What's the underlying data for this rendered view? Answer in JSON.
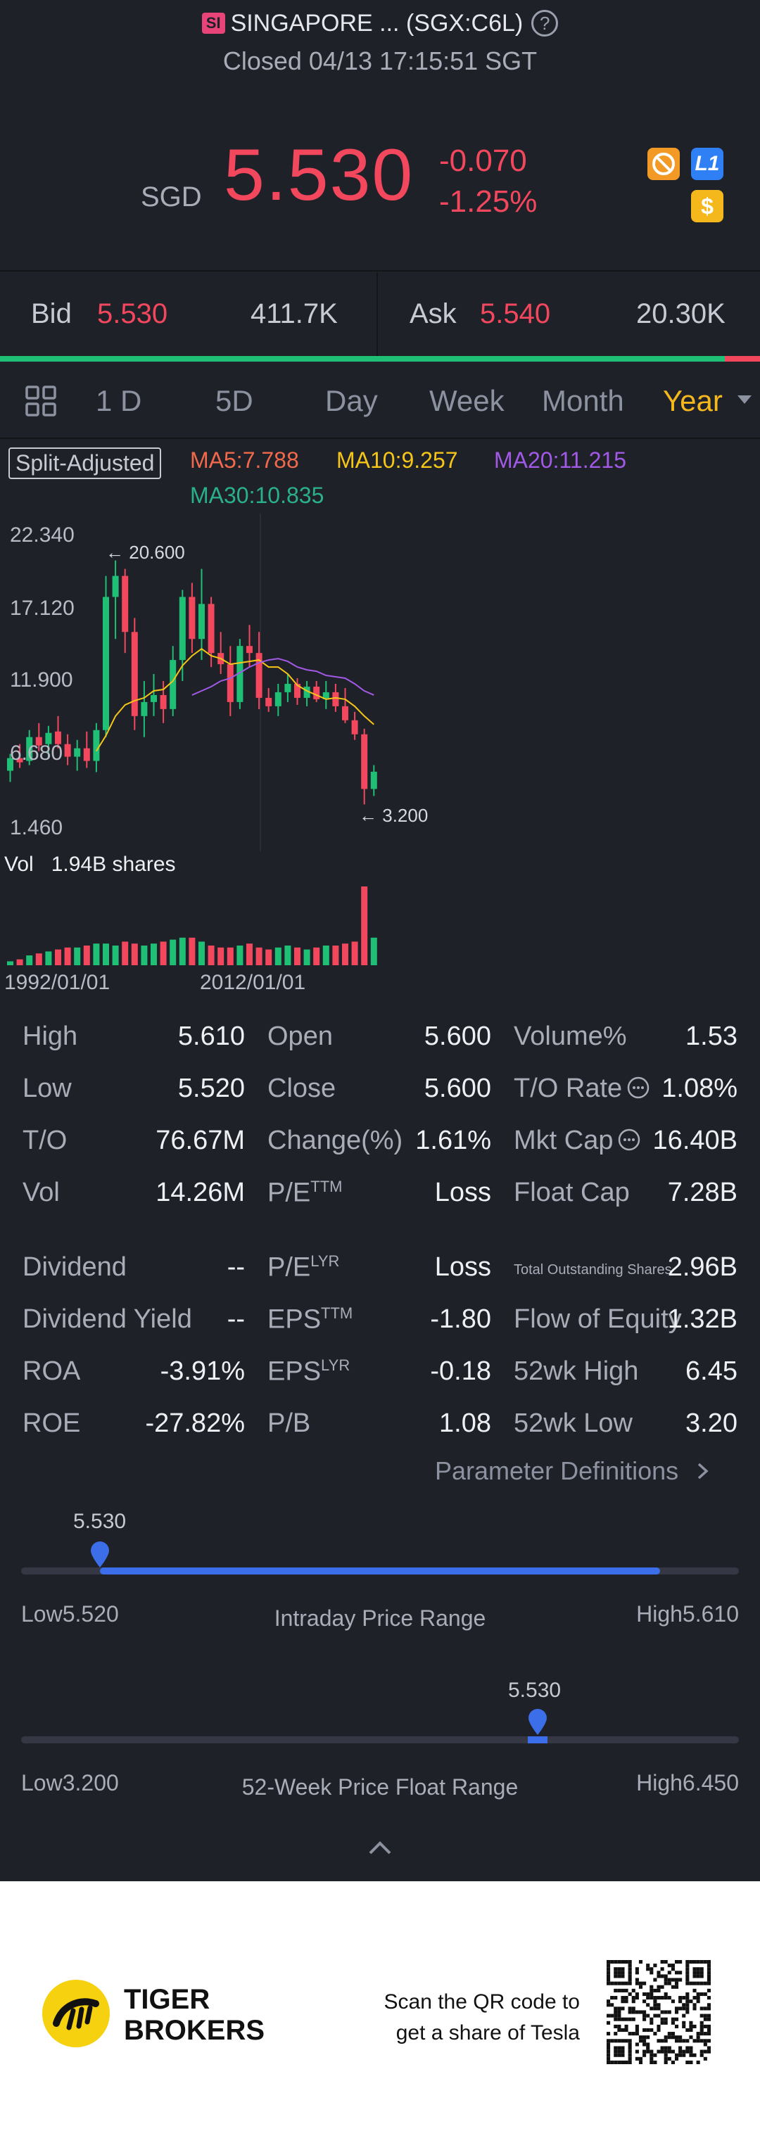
{
  "header": {
    "badge": "SI",
    "title": "SINGAPORE ... (SGX:C6L)",
    "status": "Closed 04/13 17:15:51 SGT"
  },
  "quote": {
    "currency": "SGD",
    "price": "5.530",
    "change": "-0.070",
    "change_pct": "-1.25%",
    "icon_l1": "L1",
    "icon_dollar": "$"
  },
  "bidask": {
    "bid_label": "Bid",
    "bid_price": "5.530",
    "bid_size": "411.7K",
    "ask_label": "Ask",
    "ask_price": "5.540",
    "ask_size": "20.30K"
  },
  "tabs": [
    "1 D",
    "5D",
    "Day",
    "Week",
    "Month",
    "Year"
  ],
  "tab_active": "Year",
  "chart": {
    "split_label": "Split-Adjusted",
    "ma5": "MA5:7.788",
    "ma10": "MA10:9.257",
    "ma20": "MA20:11.215",
    "ma30": "MA30:10.835",
    "y_ticks": [
      "22.340",
      "17.120",
      "11.900",
      "6.680",
      "1.460"
    ],
    "max_label": "20.600",
    "min_label": "3.200",
    "vol_label": "Vol",
    "vol_value": "1.94B shares",
    "x_ticks": [
      "1992/01/01",
      "2012/01/01"
    ],
    "colors": {
      "up": "#1fbf75",
      "down": "#f2475d",
      "ma5": "#f0694a",
      "ma10": "#f5c518",
      "ma20": "#a259e6",
      "ma30": "#2ab08a"
    }
  },
  "chart_data": {
    "type": "candlestick",
    "y_range": [
      1.46,
      22.34
    ],
    "candles": [
      {
        "o": 5.6,
        "h": 6.8,
        "l": 4.8,
        "c": 6.5
      },
      {
        "o": 6.5,
        "h": 7.5,
        "l": 5.8,
        "c": 6.2
      },
      {
        "o": 6.3,
        "h": 8.5,
        "l": 6.0,
        "c": 8.0
      },
      {
        "o": 8.0,
        "h": 9.0,
        "l": 7.0,
        "c": 7.4
      },
      {
        "o": 7.5,
        "h": 8.8,
        "l": 6.5,
        "c": 8.3
      },
      {
        "o": 8.4,
        "h": 9.5,
        "l": 7.2,
        "c": 7.5
      },
      {
        "o": 7.5,
        "h": 8.2,
        "l": 6.0,
        "c": 6.6
      },
      {
        "o": 6.6,
        "h": 7.8,
        "l": 5.6,
        "c": 7.2
      },
      {
        "o": 7.2,
        "h": 8.4,
        "l": 5.8,
        "c": 6.3
      },
      {
        "o": 6.3,
        "h": 9.0,
        "l": 5.5,
        "c": 8.5
      },
      {
        "o": 8.5,
        "h": 19.5,
        "l": 8.0,
        "c": 18.0
      },
      {
        "o": 18.0,
        "h": 20.6,
        "l": 15.0,
        "c": 19.5
      },
      {
        "o": 19.5,
        "h": 20.0,
        "l": 14.0,
        "c": 15.5
      },
      {
        "o": 15.5,
        "h": 16.5,
        "l": 8.5,
        "c": 9.5
      },
      {
        "o": 9.5,
        "h": 12.0,
        "l": 8.0,
        "c": 10.5
      },
      {
        "o": 10.5,
        "h": 12.5,
        "l": 9.5,
        "c": 11.0
      },
      {
        "o": 11.0,
        "h": 12.0,
        "l": 9.0,
        "c": 10.0
      },
      {
        "o": 10.0,
        "h": 14.5,
        "l": 9.5,
        "c": 13.5
      },
      {
        "o": 13.5,
        "h": 18.5,
        "l": 12.0,
        "c": 18.0
      },
      {
        "o": 18.0,
        "h": 19.0,
        "l": 14.0,
        "c": 15.0
      },
      {
        "o": 15.0,
        "h": 20.0,
        "l": 13.5,
        "c": 17.5
      },
      {
        "o": 17.5,
        "h": 18.0,
        "l": 13.0,
        "c": 14.0
      },
      {
        "o": 14.0,
        "h": 15.5,
        "l": 12.5,
        "c": 13.2
      },
      {
        "o": 13.2,
        "h": 14.5,
        "l": 9.5,
        "c": 10.5
      },
      {
        "o": 10.5,
        "h": 15.0,
        "l": 10.0,
        "c": 14.5
      },
      {
        "o": 14.5,
        "h": 16.0,
        "l": 13.0,
        "c": 14.0
      },
      {
        "o": 14.0,
        "h": 15.5,
        "l": 10.0,
        "c": 10.8
      },
      {
        "o": 10.8,
        "h": 11.5,
        "l": 9.8,
        "c": 10.2
      },
      {
        "o": 10.2,
        "h": 11.8,
        "l": 9.5,
        "c": 11.2
      },
      {
        "o": 11.2,
        "h": 12.5,
        "l": 10.5,
        "c": 11.8
      },
      {
        "o": 11.8,
        "h": 12.2,
        "l": 10.3,
        "c": 10.8
      },
      {
        "o": 10.8,
        "h": 12.0,
        "l": 10.2,
        "c": 11.6
      },
      {
        "o": 11.6,
        "h": 12.0,
        "l": 10.5,
        "c": 10.7
      },
      {
        "o": 10.7,
        "h": 12.0,
        "l": 10.0,
        "c": 11.2
      },
      {
        "o": 11.2,
        "h": 11.8,
        "l": 9.8,
        "c": 10.2
      },
      {
        "o": 10.2,
        "h": 11.5,
        "l": 9.0,
        "c": 9.2
      },
      {
        "o": 9.2,
        "h": 9.8,
        "l": 7.8,
        "c": 8.2
      },
      {
        "o": 8.2,
        "h": 8.6,
        "l": 3.2,
        "c": 4.3
      },
      {
        "o": 4.3,
        "h": 6.0,
        "l": 3.8,
        "c": 5.53
      }
    ],
    "volume": [
      0.1,
      0.15,
      0.25,
      0.3,
      0.35,
      0.4,
      0.45,
      0.45,
      0.5,
      0.55,
      0.55,
      0.5,
      0.6,
      0.55,
      0.5,
      0.55,
      0.6,
      0.65,
      0.7,
      0.7,
      0.6,
      0.5,
      0.45,
      0.45,
      0.5,
      0.55,
      0.45,
      0.4,
      0.45,
      0.5,
      0.45,
      0.4,
      0.45,
      0.5,
      0.5,
      0.55,
      0.6,
      2.0,
      0.7
    ],
    "ma_lines": {
      "ma10": [
        null,
        null,
        null,
        null,
        null,
        null,
        null,
        null,
        null,
        7.0,
        8.1,
        9.5,
        10.3,
        10.6,
        10.8,
        11.3,
        11.4,
        12.0,
        13.1,
        13.8,
        14.3,
        13.8,
        13.6,
        13.2,
        13.3,
        13.4,
        13.5,
        13.0,
        13.0,
        12.5,
        11.7,
        11.3,
        11.0,
        10.7,
        10.8,
        10.7,
        10.2,
        9.5,
        8.9
      ],
      "ma20": [
        null,
        null,
        null,
        null,
        null,
        null,
        null,
        null,
        null,
        null,
        null,
        null,
        null,
        null,
        null,
        null,
        null,
        null,
        null,
        11.0,
        11.3,
        11.6,
        12.0,
        12.2,
        12.6,
        13.0,
        13.3,
        13.5,
        13.6,
        13.4,
        13.0,
        12.8,
        12.7,
        12.4,
        12.3,
        12.2,
        11.8,
        11.3,
        11.0
      ]
    },
    "x_ticks": [
      "1992/01/01",
      "2012/01/01"
    ]
  },
  "stats": {
    "col1": [
      {
        "label": "High",
        "value": "5.610"
      },
      {
        "label": "Low",
        "value": "5.520"
      },
      {
        "label": "T/O",
        "value": "76.67M"
      },
      {
        "label": "Vol",
        "value": "14.26M"
      },
      {
        "label": "Dividend",
        "value": "--"
      },
      {
        "label": "Dividend Yield",
        "value": "--"
      },
      {
        "label": "ROA",
        "value": "-3.91%"
      },
      {
        "label": "ROE",
        "value": "-27.82%"
      }
    ],
    "col2": [
      {
        "label": "Open",
        "sup": "",
        "value": "5.600"
      },
      {
        "label": "Close",
        "sup": "",
        "value": "5.600"
      },
      {
        "label": "Change(%)",
        "sup": "",
        "value": "1.61%"
      },
      {
        "label": "P/E",
        "sup": "TTM",
        "value": "Loss"
      },
      {
        "label": "P/E",
        "sup": "LYR",
        "value": "Loss"
      },
      {
        "label": "EPS",
        "sup": "TTM",
        "value": "-1.80"
      },
      {
        "label": "EPS",
        "sup": "LYR",
        "value": "-0.18"
      },
      {
        "label": "P/B",
        "sup": "",
        "value": "1.08"
      }
    ],
    "col3": [
      {
        "label": "Volume%",
        "value": "1.53"
      },
      {
        "label": "T/O Rate",
        "value": "1.08%"
      },
      {
        "label": "Mkt Cap",
        "value": "16.40B"
      },
      {
        "label": "Float Cap",
        "value": "7.28B"
      },
      {
        "label": "Total Outstanding Shares",
        "value": "2.96B"
      },
      {
        "label": "Flow of Equity",
        "value": "1.32B"
      },
      {
        "label": "52wk High",
        "value": "6.45"
      },
      {
        "label": "52wk Low",
        "value": "3.20"
      }
    ],
    "param_link": "Parameter Definitions"
  },
  "intraday": {
    "marker": "5.530",
    "low_label": "Low",
    "low": "5.520",
    "title": "Intraday Price Range",
    "high_label": "High",
    "high": "5.610",
    "marker_fraction": 0.11,
    "fill_end_fraction": 0.89
  },
  "week52": {
    "marker": "5.530",
    "low_label": "Low",
    "low": "3.200",
    "title": "52-Week Price Float Range",
    "high_label": "High",
    "high": "6.450",
    "marker_fraction": 0.72
  },
  "footer": {
    "brand_line1": "TIGER",
    "brand_line2": "BROKERS",
    "qr_line1": "Scan the QR code to",
    "qr_line2": "get a share of Tesla"
  }
}
